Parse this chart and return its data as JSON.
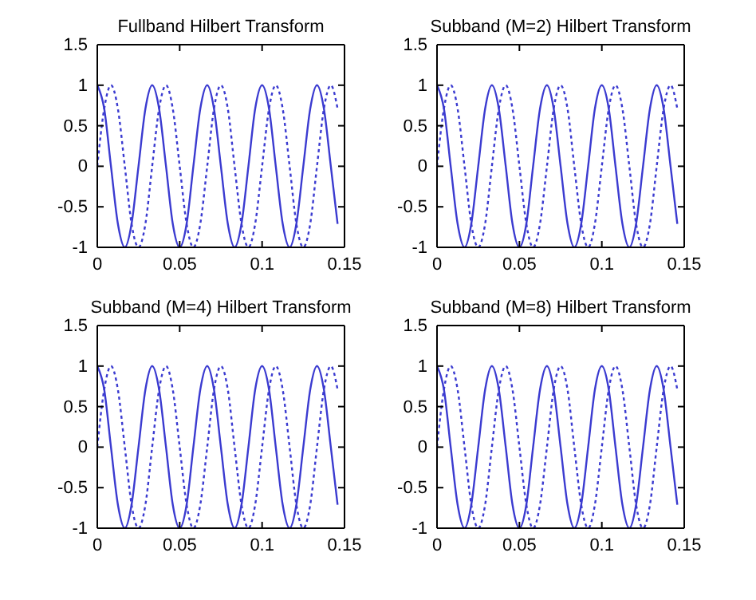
{
  "chart_data": [
    {
      "type": "line",
      "title": "Fullband Hilbert Transform",
      "xlim": [
        0,
        0.15
      ],
      "xticks": [
        0,
        0.05,
        0.1,
        0.15
      ],
      "ylim": [
        -1,
        1.5
      ],
      "yticks": [
        -1,
        -0.5,
        0,
        0.5,
        1,
        1.5
      ],
      "x": [
        0,
        0.0042,
        0.0083,
        0.0125,
        0.0167,
        0.0208,
        0.025,
        0.0292,
        0.0333,
        0.0375,
        0.0417,
        0.0458,
        0.05,
        0.0542,
        0.0583,
        0.0625,
        0.0667,
        0.0708,
        0.075,
        0.0792,
        0.0833,
        0.0875,
        0.0917,
        0.0958,
        0.1,
        0.1042,
        0.1083,
        0.1125,
        0.1167,
        0.1208,
        0.125,
        0.1292,
        0.1333,
        0.1375,
        0.1417,
        0.1458
      ],
      "series": [
        {
          "color": "#3b3bd0",
          "line_style": "solid",
          "values": [
            1,
            0.71,
            0,
            -0.71,
            -1,
            -0.71,
            0,
            0.71,
            1,
            0.71,
            0,
            -0.71,
            -1,
            -0.71,
            0,
            0.71,
            1,
            0.71,
            0,
            -0.71,
            -1,
            -0.71,
            0,
            0.71,
            1,
            0.71,
            0,
            -0.71,
            -1,
            -0.71,
            0,
            0.71,
            1,
            0.71,
            0,
            -0.71
          ]
        },
        {
          "color": "#3b3bd0",
          "line_style": "dotted",
          "values": [
            0,
            0.71,
            1,
            0.71,
            0,
            -0.71,
            -1,
            -0.71,
            0,
            0.71,
            1,
            0.71,
            0,
            -0.71,
            -1,
            -0.71,
            0,
            0.71,
            1,
            0.71,
            0,
            -0.71,
            -1,
            -0.71,
            0,
            0.71,
            1,
            0.71,
            0,
            -0.71,
            -1,
            -0.71,
            0,
            0.71,
            1,
            0.71
          ]
        }
      ]
    },
    {
      "type": "line",
      "title": "Subband (M=2) Hilbert Transform",
      "xlim": [
        0,
        0.15
      ],
      "xticks": [
        0,
        0.05,
        0.1,
        0.15
      ],
      "ylim": [
        -1,
        1.5
      ],
      "yticks": [
        -1,
        -0.5,
        0,
        0.5,
        1,
        1.5
      ],
      "x": [
        0,
        0.0042,
        0.0083,
        0.0125,
        0.0167,
        0.0208,
        0.025,
        0.0292,
        0.0333,
        0.0375,
        0.0417,
        0.0458,
        0.05,
        0.0542,
        0.0583,
        0.0625,
        0.0667,
        0.0708,
        0.075,
        0.0792,
        0.0833,
        0.0875,
        0.0917,
        0.0958,
        0.1,
        0.1042,
        0.1083,
        0.1125,
        0.1167,
        0.1208,
        0.125,
        0.1292,
        0.1333,
        0.1375,
        0.1417,
        0.1458
      ],
      "series": [
        {
          "color": "#3b3bd0",
          "line_style": "solid",
          "values": [
            1,
            0.71,
            0,
            -0.71,
            -1,
            -0.71,
            0,
            0.71,
            1,
            0.71,
            0,
            -0.71,
            -1,
            -0.71,
            0,
            0.71,
            1,
            0.71,
            0,
            -0.71,
            -1,
            -0.71,
            0,
            0.71,
            1,
            0.71,
            0,
            -0.71,
            -1,
            -0.71,
            0,
            0.71,
            1,
            0.71,
            0,
            -0.71
          ]
        },
        {
          "color": "#3b3bd0",
          "line_style": "dotted",
          "values": [
            0,
            0.71,
            1,
            0.71,
            0,
            -0.71,
            -1,
            -0.71,
            0,
            0.71,
            1,
            0.71,
            0,
            -0.71,
            -1,
            -0.71,
            0,
            0.71,
            1,
            0.71,
            0,
            -0.71,
            -1,
            -0.71,
            0,
            0.71,
            1,
            0.71,
            0,
            -0.71,
            -1,
            -0.71,
            0,
            0.71,
            1,
            0.71
          ]
        }
      ]
    },
    {
      "type": "line",
      "title": "Subband (M=4) Hilbert Transform",
      "xlim": [
        0,
        0.15
      ],
      "xticks": [
        0,
        0.05,
        0.1,
        0.15
      ],
      "ylim": [
        -1,
        1.5
      ],
      "yticks": [
        -1,
        -0.5,
        0,
        0.5,
        1,
        1.5
      ],
      "x": [
        0,
        0.0042,
        0.0083,
        0.0125,
        0.0167,
        0.0208,
        0.025,
        0.0292,
        0.0333,
        0.0375,
        0.0417,
        0.0458,
        0.05,
        0.0542,
        0.0583,
        0.0625,
        0.0667,
        0.0708,
        0.075,
        0.0792,
        0.0833,
        0.0875,
        0.0917,
        0.0958,
        0.1,
        0.1042,
        0.1083,
        0.1125,
        0.1167,
        0.1208,
        0.125,
        0.1292,
        0.1333,
        0.1375,
        0.1417,
        0.1458
      ],
      "series": [
        {
          "color": "#3b3bd0",
          "line_style": "solid",
          "values": [
            1,
            0.71,
            0,
            -0.71,
            -1,
            -0.71,
            0,
            0.71,
            1,
            0.71,
            0,
            -0.71,
            -1,
            -0.71,
            0,
            0.71,
            1,
            0.71,
            0,
            -0.71,
            -1,
            -0.71,
            0,
            0.71,
            1,
            0.71,
            0,
            -0.71,
            -1,
            -0.71,
            0,
            0.71,
            1,
            0.71,
            0,
            -0.71
          ]
        },
        {
          "color": "#3b3bd0",
          "line_style": "dotted",
          "values": [
            0,
            0.71,
            1,
            0.71,
            0,
            -0.71,
            -1,
            -0.71,
            0,
            0.71,
            1,
            0.71,
            0,
            -0.71,
            -1,
            -0.71,
            0,
            0.71,
            1,
            0.71,
            0,
            -0.71,
            -1,
            -0.71,
            0,
            0.71,
            1,
            0.71,
            0,
            -0.71,
            -1,
            -0.71,
            0,
            0.71,
            1,
            0.71
          ]
        }
      ]
    },
    {
      "type": "line",
      "title": "Subband (M=8) Hilbert Transform",
      "xlim": [
        0,
        0.15
      ],
      "xticks": [
        0,
        0.05,
        0.1,
        0.15
      ],
      "ylim": [
        -1,
        1.5
      ],
      "yticks": [
        -1,
        -0.5,
        0,
        0.5,
        1,
        1.5
      ],
      "x": [
        0,
        0.0042,
        0.0083,
        0.0125,
        0.0167,
        0.0208,
        0.025,
        0.0292,
        0.0333,
        0.0375,
        0.0417,
        0.0458,
        0.05,
        0.0542,
        0.0583,
        0.0625,
        0.0667,
        0.0708,
        0.075,
        0.0792,
        0.0833,
        0.0875,
        0.0917,
        0.0958,
        0.1,
        0.1042,
        0.1083,
        0.1125,
        0.1167,
        0.1208,
        0.125,
        0.1292,
        0.1333,
        0.1375,
        0.1417,
        0.1458
      ],
      "series": [
        {
          "color": "#3b3bd0",
          "line_style": "solid",
          "values": [
            1,
            0.71,
            0,
            -0.71,
            -1,
            -0.71,
            0,
            0.71,
            1,
            0.71,
            0,
            -0.71,
            -1,
            -0.71,
            0,
            0.71,
            1,
            0.71,
            0,
            -0.71,
            -1,
            -0.71,
            0,
            0.71,
            1,
            0.71,
            0,
            -0.71,
            -1,
            -0.71,
            0,
            0.71,
            1,
            0.71,
            0,
            -0.71
          ]
        },
        {
          "color": "#3b3bd0",
          "line_style": "dotted",
          "values": [
            0,
            0.71,
            1,
            0.71,
            0,
            -0.71,
            -1,
            -0.71,
            0,
            0.71,
            1,
            0.71,
            0,
            -0.71,
            -1,
            -0.71,
            0,
            0.71,
            1,
            0.71,
            0,
            -0.71,
            -1,
            -0.71,
            0,
            0.71,
            1,
            0.71,
            0,
            -0.71,
            -1,
            -0.71,
            0,
            0.71,
            1,
            0.71
          ]
        }
      ]
    }
  ]
}
